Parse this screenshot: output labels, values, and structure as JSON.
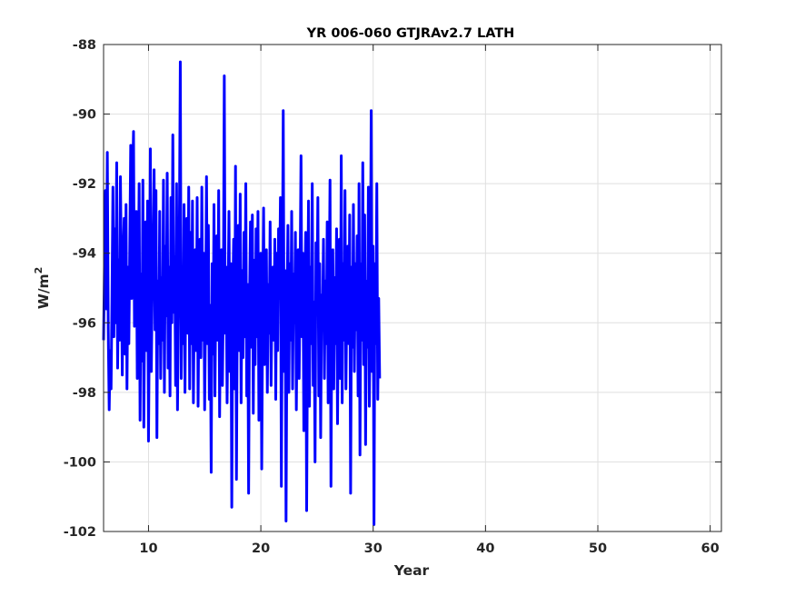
{
  "chart_data": {
    "type": "line",
    "title": "YR 006-060 GTJRAv2.7 LATH",
    "xlabel": "Year",
    "ylabel_base": "W/m",
    "ylabel_sup": "2",
    "xlim": [
      6,
      61
    ],
    "ylim": [
      -102,
      -88
    ],
    "xticks": [
      10,
      20,
      30,
      40,
      50,
      60
    ],
    "yticks": [
      -88,
      -90,
      -92,
      -94,
      -96,
      -98,
      -100,
      -102
    ],
    "grid": true,
    "series": [
      {
        "color": "#0000ff",
        "x_start": 6.0,
        "x_step": 0.0833,
        "y": [
          -96.5,
          -94.3,
          -92.2,
          -95.6,
          -91.1,
          -96.2,
          -98.5,
          -96.8,
          -97.9,
          -95.2,
          -92.1,
          -96.4,
          -93.3,
          -96.0,
          -91.4,
          -97.3,
          -94.2,
          -96.5,
          -91.8,
          -94.5,
          -97.5,
          -94.1,
          -93.0,
          -96.9,
          -92.6,
          -97.9,
          -94.4,
          -96.6,
          -93.8,
          -90.9,
          -95.3,
          -91.9,
          -90.5,
          -96.1,
          -94.9,
          -92.8,
          -97.6,
          -95.3,
          -92.0,
          -98.8,
          -94.6,
          -97.1,
          -91.9,
          -99.0,
          -95.3,
          -93.1,
          -96.8,
          -92.5,
          -99.4,
          -95.8,
          -91.0,
          -97.4,
          -95.1,
          -93.7,
          -91.6,
          -96.2,
          -92.2,
          -99.3,
          -94.8,
          -96.6,
          -92.8,
          -97.6,
          -94.7,
          -96.5,
          -91.9,
          -98.0,
          -93.8,
          -95.8,
          -91.7,
          -97.3,
          -94.4,
          -98.1,
          -92.4,
          -96.0,
          -90.6,
          -95.7,
          -94.1,
          -97.8,
          -92.0,
          -98.5,
          -95.5,
          -93.3,
          -88.5,
          -97.6,
          -94.8,
          -96.6,
          -92.6,
          -98.0,
          -94.1,
          -93.0,
          -96.3,
          -92.1,
          -97.9,
          -93.4,
          -96.6,
          -92.5,
          -98.3,
          -95.3,
          -93.9,
          -96.8,
          -92.4,
          -98.4,
          -95.1,
          -93.6,
          -97.0,
          -92.1,
          -96.5,
          -94.0,
          -98.5,
          -95.7,
          -91.8,
          -96.6,
          -93.2,
          -98.2,
          -95.5,
          -100.3,
          -94.3,
          -96.9,
          -92.6,
          -98.1,
          -95.0,
          -93.5,
          -96.5,
          -92.2,
          -98.7,
          -95.1,
          -93.9,
          -97.8,
          -95.3,
          -88.9,
          -96.3,
          -94.4,
          -98.3,
          -95.6,
          -92.8,
          -97.4,
          -94.3,
          -101.3,
          -95.4,
          -93.6,
          -97.9,
          -91.5,
          -100.5,
          -95.0,
          -93.2,
          -96.8,
          -92.3,
          -98.3,
          -94.5,
          -97.0,
          -93.4,
          -96.4,
          -92.0,
          -98.1,
          -94.9,
          -100.9,
          -95.3,
          -93.1,
          -96.7,
          -92.9,
          -98.6,
          -94.2,
          -97.2,
          -93.3,
          -96.4,
          -92.8,
          -98.8,
          -95.2,
          -94.0,
          -100.2,
          -95.6,
          -92.7,
          -97.2,
          -95.1,
          -93.9,
          -98.0,
          -94.9,
          -96.3,
          -93.1,
          -97.8,
          -95.3,
          -94.4,
          -96.5,
          -93.6,
          -98.2,
          -94.0,
          -96.8,
          -93.3,
          -95.1,
          -92.4,
          -100.7,
          -95.0,
          -89.9,
          -97.4,
          -94.5,
          -101.7,
          -95.8,
          -93.2,
          -98.0,
          -94.3,
          -96.5,
          -92.8,
          -97.9,
          -94.6,
          -96.0,
          -93.4,
          -98.5,
          -95.2,
          -93.9,
          -97.6,
          -94.6,
          -91.2,
          -96.4,
          -94.0,
          -99.1,
          -95.5,
          -93.4,
          -101.4,
          -96.2,
          -92.5,
          -98.4,
          -94.4,
          -96.6,
          -92.0,
          -97.8,
          -95.4,
          -100.0,
          -93.7,
          -95.6,
          -92.4,
          -98.1,
          -94.3,
          -99.3,
          -95.2,
          -96.1,
          -93.6,
          -97.6,
          -94.8,
          -96.6,
          -93.1,
          -98.3,
          -95.6,
          -91.9,
          -100.7,
          -95.3,
          -93.9,
          -97.9,
          -94.7,
          -96.6,
          -93.3,
          -98.9,
          -95.4,
          -93.6,
          -97.6,
          -91.2,
          -98.3,
          -94.3,
          -96.5,
          -92.2,
          -97.9,
          -95.2,
          -93.8,
          -96.6,
          -92.9,
          -100.9,
          -94.4,
          -96.7,
          -92.6,
          -97.4,
          -94.3,
          -96.2,
          -93.5,
          -98.1,
          -92.0,
          -99.8,
          -94.3,
          -96.5,
          -91.4,
          -97.2,
          -92.9,
          -99.5,
          -94.8,
          -96.7,
          -92.1,
          -98.4,
          -95.6,
          -89.9,
          -97.4,
          -93.8,
          -101.8,
          -94.3,
          -96.6,
          -92.0,
          -98.2,
          -95.3,
          -97.6
        ]
      }
    ]
  }
}
